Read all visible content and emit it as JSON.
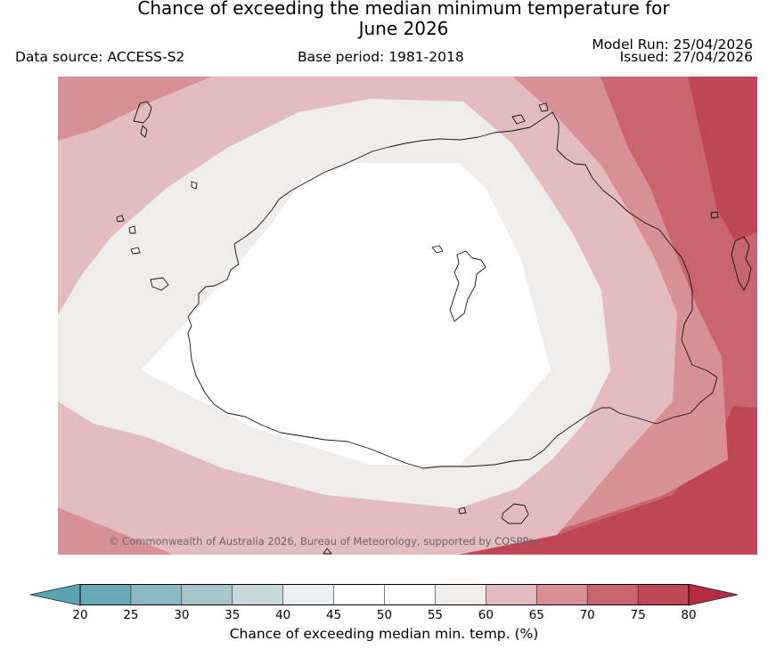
{
  "header": {
    "title_line1": "Chance of exceeding the median minimum temperature for",
    "title_line2": "June 2026",
    "data_source": "Data source: ACCESS-S2",
    "base_period": "Base period: 1981-2018",
    "model_run": "Model Run: 25/04/2026",
    "issued": "Issued: 27/04/2026"
  },
  "map": {
    "copyright": "© Commonwealth of Australia 2026, Bureau of Meteorology, supported by COSPPac",
    "bands": [
      {
        "range": "45-50",
        "color": "#ffffff"
      },
      {
        "range": "55-60",
        "color": "#eeedec"
      },
      {
        "range": "60-65",
        "color": "#e2bcbf"
      },
      {
        "range": "65-70",
        "color": "#d79196"
      },
      {
        "range": "70-75",
        "color": "#c9656f"
      },
      {
        "range": "75-80",
        "color": "#bf4654"
      }
    ]
  },
  "colorbar": {
    "label": "Chance of exceeding median min. temp. (%)",
    "ticks": [
      "20",
      "25",
      "30",
      "35",
      "40",
      "45",
      "50",
      "55",
      "60",
      "65",
      "70",
      "75",
      "80"
    ],
    "colors": [
      "#6aaab8",
      "#8cb8c4",
      "#a7c5cb",
      "#c8d7dc",
      "#e9eff2",
      "#ffffff",
      "#ffffff",
      "#eeedec",
      "#e2bcbf",
      "#d79196",
      "#c9656f",
      "#bf4654"
    ],
    "under_color": "#5aa3b2",
    "over_color": "#b72b45"
  }
}
